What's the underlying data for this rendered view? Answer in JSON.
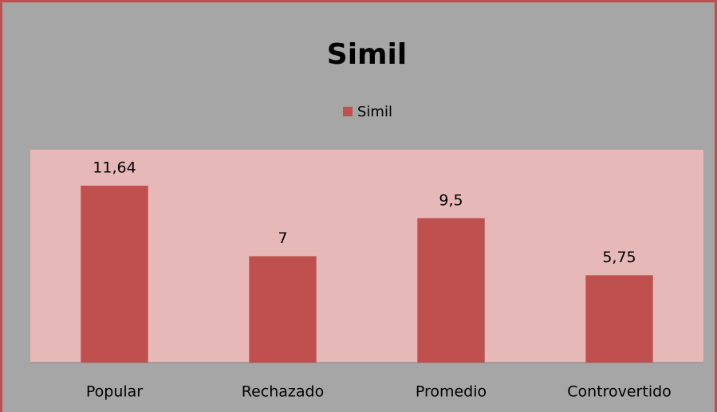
{
  "chart_data": {
    "type": "bar",
    "title": "Simil",
    "categories": [
      "Popular",
      "Rechazado",
      "Promedio",
      "Controvertido"
    ],
    "series": [
      {
        "name": "Simil",
        "color": "#c0504d",
        "values": [
          11.64,
          7,
          9.5,
          5.75
        ]
      }
    ],
    "value_labels": [
      "11,64",
      "7",
      "9,5",
      "5,75"
    ],
    "ylim": [
      0,
      14
    ],
    "legend": "top"
  }
}
